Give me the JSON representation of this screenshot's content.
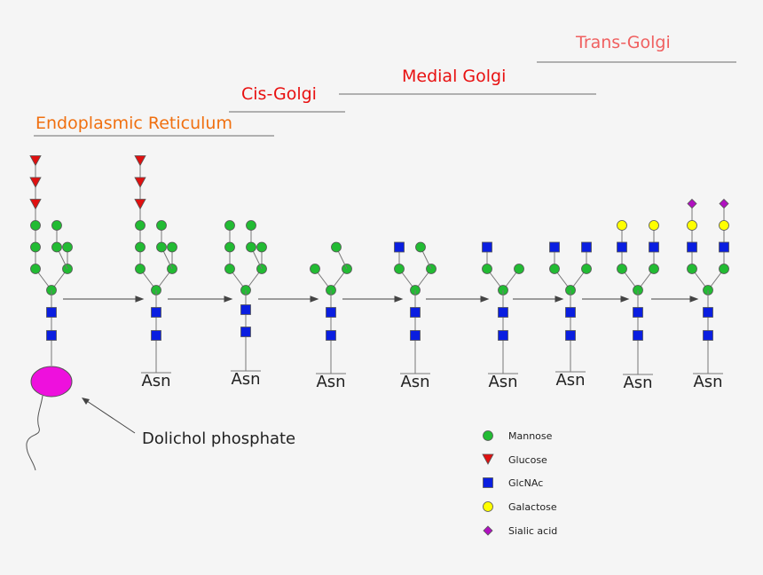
{
  "compartments": [
    {
      "label": "Endoplasmic Reticulum",
      "color": "#f07010"
    },
    {
      "label": "Cis-Golgi",
      "color": "#e81010"
    },
    {
      "label": "Medial Golgi",
      "color": "#e81010"
    },
    {
      "label": "Trans-Golgi",
      "color": "#f06060"
    }
  ],
  "residue_label": "Asn",
  "carrier_label": "Dolichol phosphate",
  "legend": [
    {
      "label": "Mannose",
      "shape": "circle",
      "color": "#22bb33"
    },
    {
      "label": "Glucose",
      "shape": "triangle",
      "color": "#e01010"
    },
    {
      "label": "GlcNAc",
      "shape": "square",
      "color": "#0a1ee0"
    },
    {
      "label": "Galactose",
      "shape": "circle",
      "color": "#ffff00"
    },
    {
      "label": "Sialic acid",
      "shape": "diamond",
      "color": "#b010c0"
    }
  ],
  "colors": {
    "mannose": "#22bb33",
    "glucose": "#e01010",
    "glcnac": "#0a1ee0",
    "galactose": "#ffff00",
    "sialic": "#b010c0",
    "dolichol": "#ee10dd",
    "line": "#777777"
  },
  "structures": [
    {
      "step": 1,
      "attached_to": "dolichol",
      "left_arm": [
        "mannose",
        "mannose",
        "mannose",
        "glucose",
        "glucose",
        "glucose"
      ],
      "center_arm": [
        "mannose",
        "mannose"
      ],
      "right_arm": [
        "mannose",
        "mannose"
      ]
    },
    {
      "step": 2,
      "attached_to": "Asn",
      "left_arm": [
        "mannose",
        "mannose",
        "mannose",
        "glucose",
        "glucose",
        "glucose"
      ],
      "center_arm": [
        "mannose",
        "mannose"
      ],
      "right_arm": [
        "mannose",
        "mannose"
      ]
    },
    {
      "step": 3,
      "attached_to": "Asn",
      "left_arm": [
        "mannose",
        "mannose",
        "mannose"
      ],
      "center_arm": [
        "mannose",
        "mannose"
      ],
      "right_arm": [
        "mannose",
        "mannose"
      ]
    },
    {
      "step": 4,
      "attached_to": "Asn",
      "left_arm": [
        "mannose"
      ],
      "center_arm": [
        "mannose"
      ],
      "right_arm": [
        "mannose"
      ]
    },
    {
      "step": 5,
      "attached_to": "Asn",
      "left_arm": [
        "mannose",
        "glcnac"
      ],
      "center_arm": [
        "mannose"
      ],
      "right_arm": [
        "mannose"
      ]
    },
    {
      "step": 6,
      "attached_to": "Asn",
      "left_arm": [
        "mannose",
        "glcnac"
      ],
      "center_arm": [],
      "right_arm": [
        "mannose"
      ]
    },
    {
      "step": 7,
      "attached_to": "Asn",
      "left_arm": [
        "mannose",
        "glcnac"
      ],
      "center_arm": [],
      "right_arm": [
        "mannose",
        "glcnac"
      ]
    },
    {
      "step": 8,
      "attached_to": "Asn",
      "left_arm": [
        "mannose",
        "glcnac",
        "galactose"
      ],
      "center_arm": [],
      "right_arm": [
        "mannose",
        "glcnac",
        "galactose"
      ]
    },
    {
      "step": 9,
      "attached_to": "Asn",
      "left_arm": [
        "mannose",
        "glcnac",
        "galactose",
        "sialic"
      ],
      "center_arm": [],
      "right_arm": [
        "mannose",
        "glcnac",
        "galactose",
        "sialic"
      ]
    }
  ]
}
